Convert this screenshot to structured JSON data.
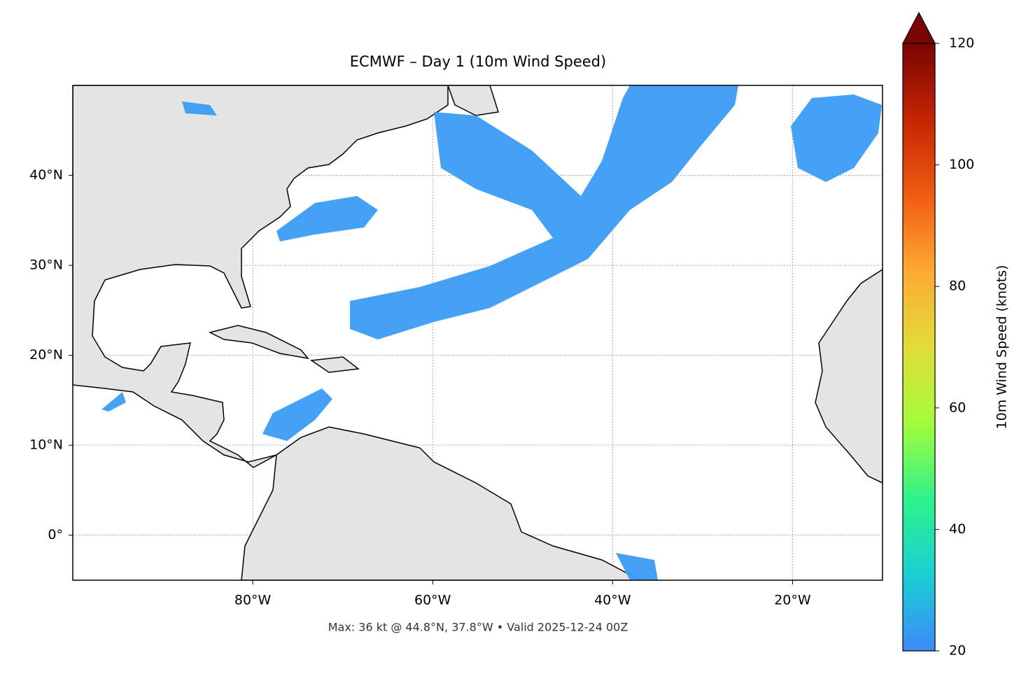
{
  "chart_data": {
    "type": "map",
    "title": "ECMWF – Day 1 (10m Wind Speed)",
    "footnote": "Max: 36 kt @ 44.8°N, 37.8°W • Valid 2025-12-24 00Z",
    "xlim": [
      -100,
      -10
    ],
    "ylim": [
      -5,
      50
    ],
    "xticks": [
      {
        "value": -80,
        "label": "80°W"
      },
      {
        "value": -60,
        "label": "60°W"
      },
      {
        "value": -40,
        "label": "40°W"
      },
      {
        "value": -20,
        "label": "20°W"
      }
    ],
    "yticks": [
      {
        "value": 0,
        "label": "0°"
      },
      {
        "value": 10,
        "label": "10°N"
      },
      {
        "value": 20,
        "label": "20°N"
      },
      {
        "value": 30,
        "label": "30°N"
      },
      {
        "value": 40,
        "label": "40°N"
      }
    ],
    "grid": true,
    "colorbar": {
      "label": "10m Wind Speed (knots)",
      "lim": [
        20,
        120
      ],
      "ticks": [
        20,
        40,
        60,
        80,
        100,
        120
      ],
      "colors": [
        "#3d8af7",
        "#1bcfd4",
        "#2ef28a",
        "#a4fc3c",
        "#e2dc38",
        "#fdaa33",
        "#f05b12",
        "#c42503",
        "#7a0403"
      ]
    }
  }
}
